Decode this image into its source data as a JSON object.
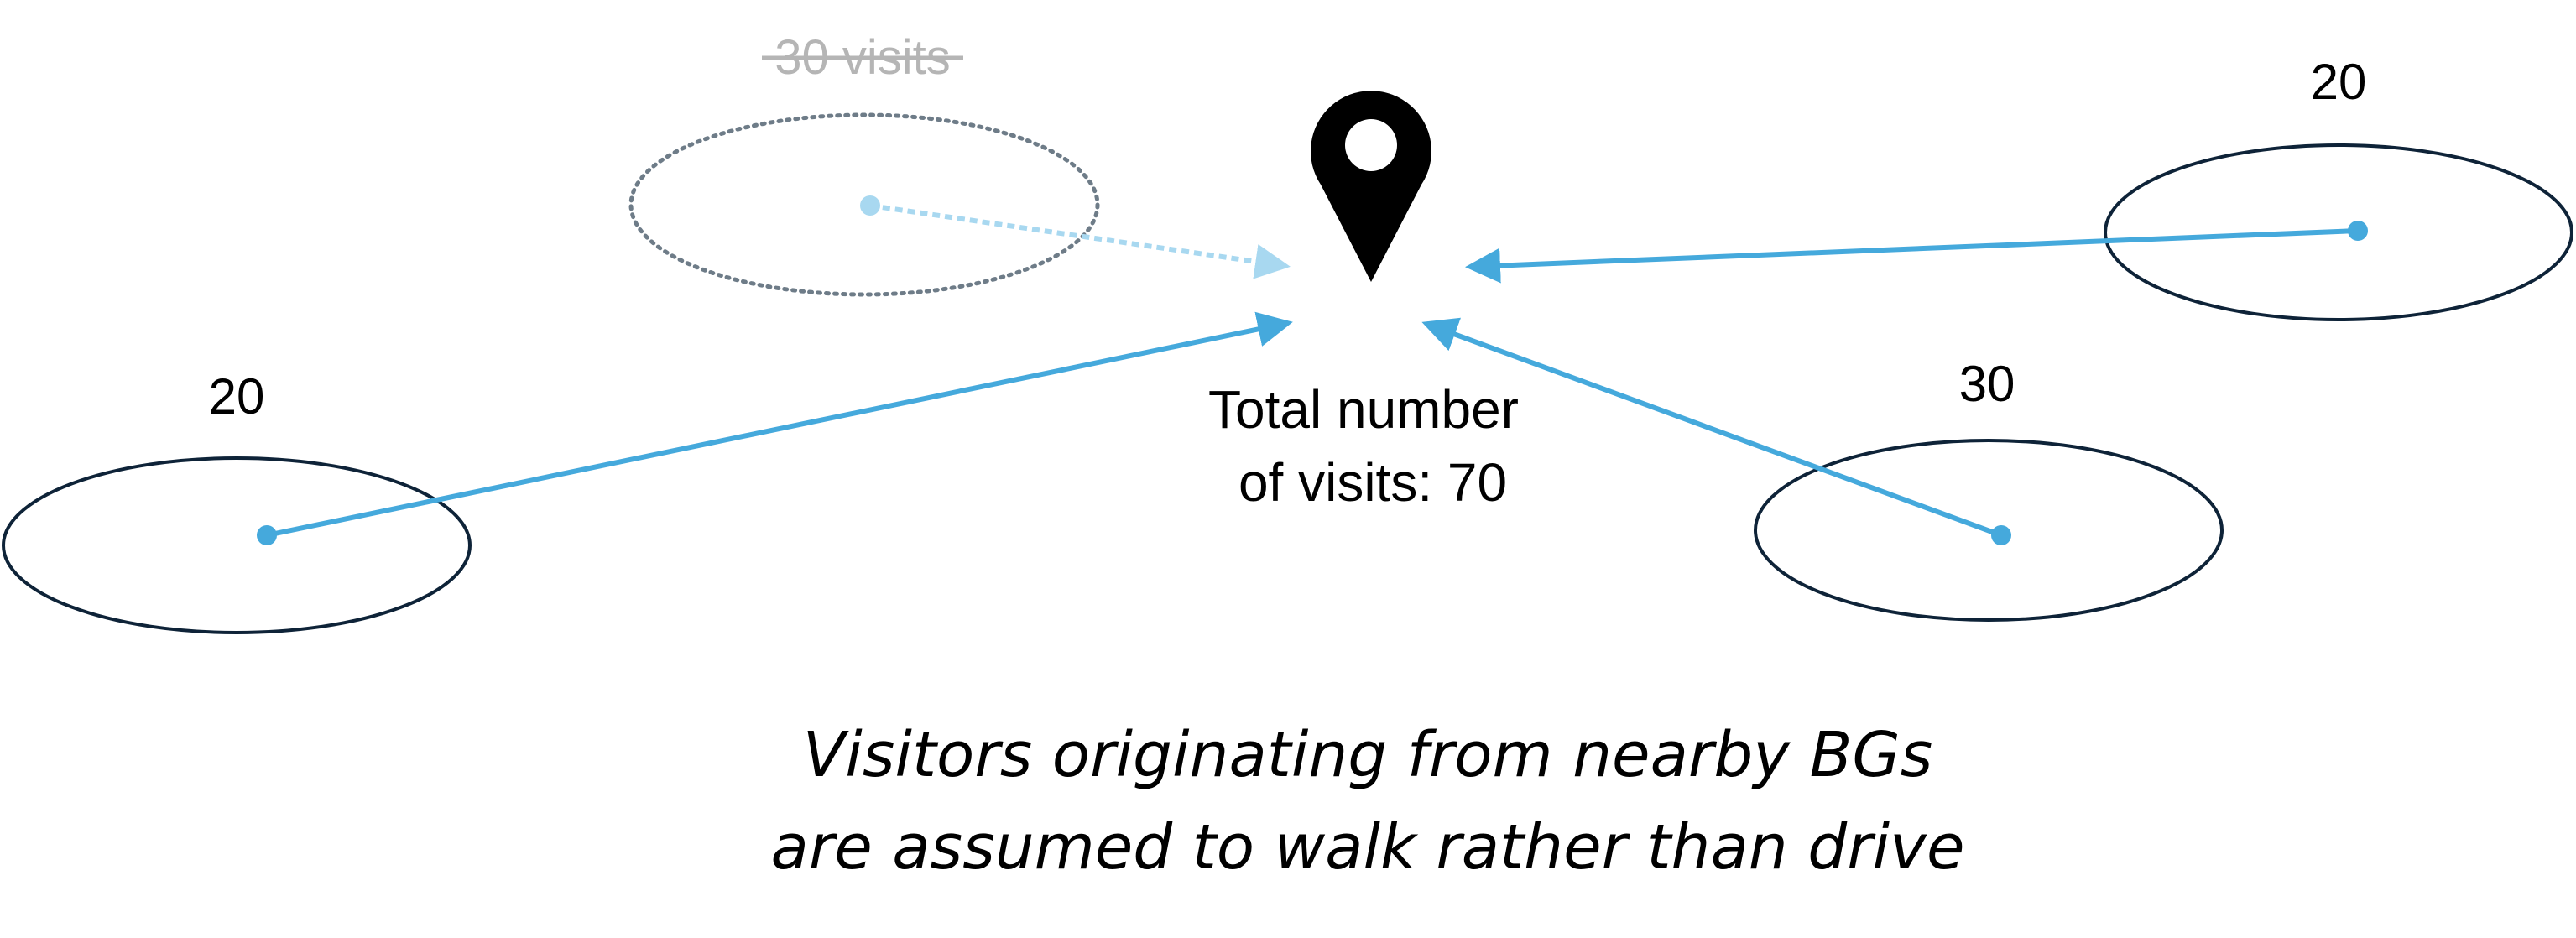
{
  "diagram": {
    "destination": {
      "icon": "map-pin-icon",
      "total_label_line1": "Total number",
      "total_label_line2": "of visits: 70"
    },
    "origins": [
      {
        "id": "bg-left",
        "count_label": "20",
        "style": "solid"
      },
      {
        "id": "bg-right-top",
        "count_label": "20",
        "style": "solid"
      },
      {
        "id": "bg-right-bottom",
        "count_label": "30",
        "style": "solid"
      },
      {
        "id": "bg-nearby",
        "count_label": "30 visits",
        "style": "excluded",
        "struck_through": true
      }
    ],
    "caption_line1": "Visitors originating from nearby BGs",
    "caption_line2": "are assumed to walk rather than drive"
  },
  "colors": {
    "arrow": "#45A9DC",
    "arrow_faded": "#A8D8F0",
    "ellipse": "#0E2338",
    "ellipse_faded": "#6E7C88",
    "struck_text": "#B5B5B5",
    "pin": "#000000"
  }
}
